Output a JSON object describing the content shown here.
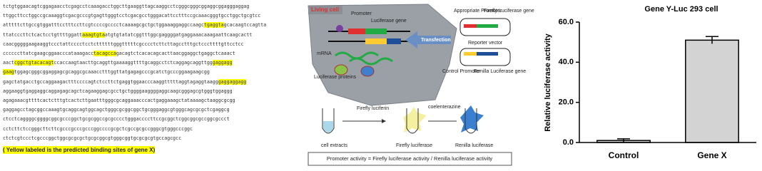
{
  "sequence": {
    "lines": [
      [
        {
          "text": "tctgtggaacagtcggagaacctcgagcctcaaagacctggcttgaaggttagcaaggcctcgggcgggcggaggcggagggaggag"
        }
      ],
      [
        {
          "text": "ttggcttcctggccgcaaaggtcgacgcccgtgagttgggtcctcgacgcctgggacattcctttccgcaaacgggtgcctggctgcgtcc"
        }
      ],
      [
        {
          "text": "atttttcttgccgtggatttcctttccttcgtccccgcccctcaaaagcgctgctggaaaggaggccaagc"
        },
        {
          "text": "tgaggta",
          "highlighted": true
        },
        {
          "text": "gcacaagtccagtta"
        }
      ],
      [
        {
          "text": "ttatcccttctcactcctgttttggatt"
        },
        {
          "text": "aaagtgta",
          "highlighted": true
        },
        {
          "text": "atgtgtatatcggtttggcgaggggatgaggaaacaaagaattcaagcactt"
        }
      ],
      [
        {
          "text": "caacgggggaagaaggtccctattcccctcctcttttttgggtttttcgcccctcttcttagcctttgctcccttttgttcctcc"
        }
      ],
      [
        {
          "text": "ccccccttatcgaagcggaacccataaagacc"
        },
        {
          "text": "tacagcca",
          "highlighted": true
        },
        {
          "text": "gacagtctcacacagcacttaacggaggctgaggctcaaact"
        }
      ],
      [
        {
          "text": "aact"
        },
        {
          "text": "cggctgtacacagt",
          "highlighted": true
        },
        {
          "text": "ccaccaagtaacttgcaggttgaaaaggttttgcaggcctctcaggagcaggttgg"
        },
        {
          "text": "gaggagg",
          "highlighted": true
        }
      ],
      [
        {
          "text": "gaag",
          "highlighted": true
        },
        {
          "text": "tggagcgggcggaggagcgcaggcgcaaacctttggttatgagagcccgcatctgcccggaagaagcgg"
        }
      ],
      [
        {
          "text": "gagctatgacctgccaggaagactttccccagtctccttctgaggtggaacccaaggtttttaggtagaggtaagg"
        },
        {
          "text": "gaggaggagg",
          "highlighted": true
        }
      ],
      [
        {
          "text": "aggaaggtgaggaggcaggagagcagctcagaaggagcgcctgctggggaaggggaggcaagcgggagcgtgggtggaggg"
        }
      ],
      [
        {
          "text": "agagaaacgttttcactctttgtcactcttgaatttgggcgcaggaaacccactgaggaaagctataaaagctaaggcgcgg"
        }
      ],
      [
        {
          "text": "gaggagcctagcggccaaagtgcaggcagtggcagctgggcgcggcggctgcgggaggcgtgggcagcgcgctcgaggcg"
        }
      ],
      [
        {
          "text": "ctcctcaggggcggggcggcgcccggctgcgcggccgcgcccctgggaccccttccgcggctcggcggcgccggcgccct"
        }
      ],
      [
        {
          "text": "cctcttctccgggcttcttcgcccgcccgcccggccccgcgctcgccgcgccgggcgtgggcccggc"
        }
      ],
      [
        {
          "text": "ctctcgtccctcgcccggctggcgcgcgctgcgcggcgtgggcggtgcgcgcgtgccagcgcc"
        }
      ]
    ],
    "note": "( Yellow labeled is the predicted binding sites of gene X)"
  },
  "diagram": {
    "living_cell": "Living cell",
    "promoter": "Promoter",
    "luciferase_gene": "Luciferase gene",
    "mrna": "mRNA",
    "luciferase_proteins": "Luciferase proteins",
    "transfection": "Transfection",
    "appropriate_promoter": "Appropriate Promoter",
    "firefly_gene": "Firefly Luciferase gene",
    "reporter_vector": "Reporter vector",
    "control_promoter": "Control Promoter",
    "renilla_gene": "Renilla Luciferase gene",
    "firefly_luciferin": "Firefly luciferin",
    "coelenterazine": "coelenterazine",
    "cell_extracts": "cell extracts",
    "firefly_luciferase": "Firefly luciferase",
    "renilla_luciferase": "Renilla luciferase",
    "formula": "Promoter activity = Firefly luciferase activity / Renilla luciferase activity"
  },
  "chart_data": {
    "type": "bar",
    "title": "Gene Y-Luc   293 cell",
    "y_label": "Relative luciferase activity",
    "categories": [
      "Control",
      "Gene X"
    ],
    "values": [
      1,
      51
    ],
    "errors": [
      0.8,
      1.8
    ],
    "color": "#d3d3d3",
    "ylim": [
      0,
      60
    ],
    "yticks": [
      {
        "value": 0,
        "label": "0.0"
      },
      {
        "value": 20,
        "label": "20.0"
      },
      {
        "value": 40,
        "label": "40.0"
      },
      {
        "value": 60,
        "label": "60.0"
      }
    ]
  }
}
